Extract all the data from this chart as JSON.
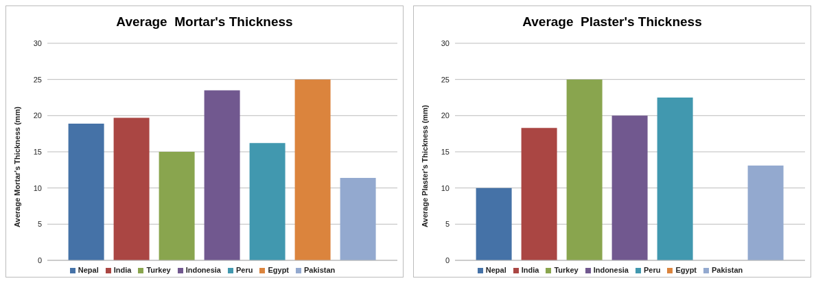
{
  "chart_data": [
    {
      "type": "bar",
      "title": "Average  Mortar's Thickness",
      "ylabel": "Average Mortar's Thickness (mm)",
      "categories": [
        null
      ],
      "ylim": [
        0,
        30
      ],
      "yticks": [
        0,
        5,
        10,
        15,
        20,
        25,
        30
      ],
      "grid": "y",
      "legend": "bottom",
      "series": [
        {
          "name": "Nepal",
          "color": "#4572a7",
          "values": [
            18.9
          ]
        },
        {
          "name": "India",
          "color": "#aa4643",
          "values": [
            19.7
          ]
        },
        {
          "name": "Turkey",
          "color": "#89a54e",
          "values": [
            15.0
          ]
        },
        {
          "name": "Indonesia",
          "color": "#71588f",
          "values": [
            23.5
          ]
        },
        {
          "name": "Peru",
          "color": "#4198af",
          "values": [
            16.2
          ]
        },
        {
          "name": "Egypt",
          "color": "#db843d",
          "values": [
            25.0
          ]
        },
        {
          "name": "Pakistan",
          "color": "#93a9cf",
          "values": [
            11.4
          ]
        }
      ]
    },
    {
      "type": "bar",
      "title": "Average  Plaster's Thickness",
      "ylabel": "Average Plaster's Thickness (mm)",
      "categories": [
        null
      ],
      "ylim": [
        0,
        30
      ],
      "yticks": [
        0,
        5,
        10,
        15,
        20,
        25,
        30
      ],
      "grid": "y",
      "legend": "bottom",
      "series": [
        {
          "name": "Nepal",
          "color": "#4572a7",
          "values": [
            10.0
          ]
        },
        {
          "name": "India",
          "color": "#aa4643",
          "values": [
            18.3
          ]
        },
        {
          "name": "Turkey",
          "color": "#89a54e",
          "values": [
            25.0
          ]
        },
        {
          "name": "Indonesia",
          "color": "#71588f",
          "values": [
            20.0
          ]
        },
        {
          "name": "Peru",
          "color": "#4198af",
          "values": [
            22.5
          ]
        },
        {
          "name": "Egypt",
          "color": "#db843d",
          "values": [
            null
          ]
        },
        {
          "name": "Pakistan",
          "color": "#93a9cf",
          "values": [
            13.1
          ]
        }
      ]
    }
  ]
}
